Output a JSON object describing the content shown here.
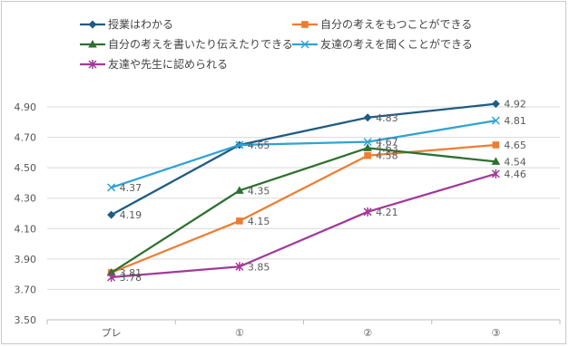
{
  "chart_data": {
    "type": "line",
    "title": "",
    "xlabel": "",
    "ylabel": "",
    "categories": [
      "プレ",
      "①",
      "②",
      "③"
    ],
    "ylim": [
      3.5,
      4.9
    ],
    "yticks": [
      "3.50",
      "3.70",
      "3.90",
      "4.10",
      "4.30",
      "4.50",
      "4.70",
      "4.90"
    ],
    "grid": "horizontal",
    "legend_position": "top",
    "series": [
      {
        "name": "授業はわかる",
        "color": "#1f5c82",
        "marker": "diamond",
        "values": [
          4.19,
          4.65,
          4.83,
          4.92
        ],
        "labels": [
          "4.19",
          "4.65",
          "4.83",
          "4.92"
        ]
      },
      {
        "name": "自分の考えをもつことができる",
        "color": "#ed7d31",
        "marker": "square",
        "values": [
          3.81,
          4.15,
          4.58,
          4.65
        ],
        "labels": [
          "3.81",
          "4.15",
          "4.58",
          "4.65"
        ]
      },
      {
        "name": "自分の考えを書いたり伝えたりできる",
        "color": "#2e7030",
        "marker": "triangle",
        "values": [
          3.81,
          4.35,
          4.63,
          4.54
        ],
        "labels": [
          "",
          "4.35",
          "4.63",
          "4.54"
        ]
      },
      {
        "name": "友達の考えを聞くことができる",
        "color": "#2ea3d6",
        "marker": "x",
        "values": [
          4.37,
          4.65,
          4.67,
          4.81
        ],
        "labels": [
          "4.37",
          "",
          "4.67",
          "4.81"
        ]
      },
      {
        "name": "友達や先生に認められる",
        "color": "#a3399a",
        "marker": "star",
        "values": [
          3.78,
          3.85,
          4.21,
          4.46
        ],
        "labels": [
          "3.78",
          "3.85",
          "4.21",
          "4.46"
        ]
      }
    ]
  }
}
